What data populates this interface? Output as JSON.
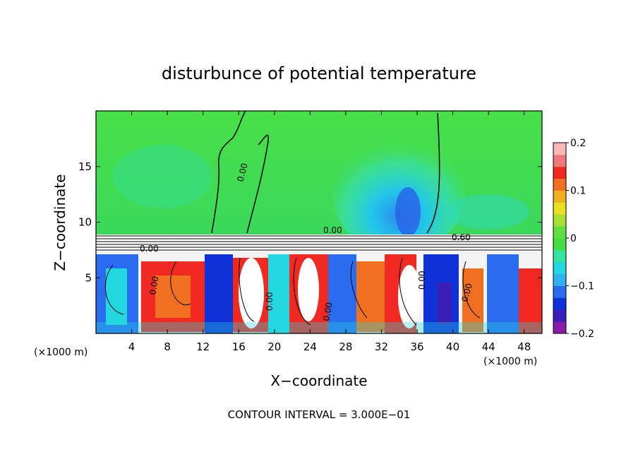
{
  "chart_data": {
    "type": "heatmap",
    "title": "disturbunce of potential temperature",
    "xlabel": "X−coordinate",
    "ylabel": "Z−coordinate",
    "x_unit_left": "(×1000 m)",
    "x_unit_right": "(×1000 m)",
    "xlim": [
      0,
      50
    ],
    "ylim": [
      0,
      20
    ],
    "x_ticks": [
      4,
      8,
      12,
      16,
      20,
      24,
      28,
      32,
      36,
      40,
      44,
      48
    ],
    "y_ticks": [
      5,
      10,
      15
    ],
    "colorbar": {
      "min": -0.2,
      "max": 0.2,
      "ticks": [
        {
          "value": 0.2,
          "label": "0.2"
        },
        {
          "value": 0.1,
          "label": "0.1"
        },
        {
          "value": 0,
          "label": "0"
        },
        {
          "value": -0.1,
          "label": "−0.1"
        },
        {
          "value": -0.2,
          "label": "−0.2"
        }
      ],
      "colors": [
        "#8a1aa8",
        "#3b1fb5",
        "#1030d8",
        "#2a6cf0",
        "#2fb0f0",
        "#22d8e0",
        "#33e6a0",
        "#43dc45",
        "#5fe040",
        "#a8e030",
        "#e8e020",
        "#f0b020",
        "#f07020",
        "#f02a20",
        "#f07878",
        "#f8b8b8"
      ]
    },
    "contour_labels": [
      "0.00",
      "0.00",
      "0.00",
      "0.60",
      "0.00",
      "0.00",
      "0.00",
      "0.00",
      "0.00"
    ],
    "footer": "CONTOUR INTERVAL = 3.000E−01"
  }
}
